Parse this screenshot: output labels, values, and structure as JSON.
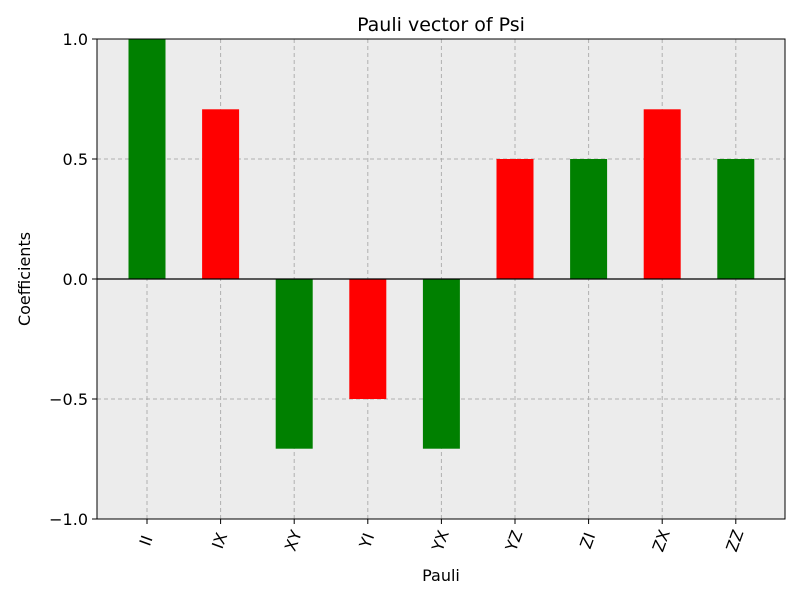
{
  "chart_data": {
    "type": "bar",
    "title": "Pauli vector of Psi",
    "xlabel": "Pauli",
    "ylabel": "Coefficients",
    "ylim": [
      -1.0,
      1.0
    ],
    "yticks": [
      -1.0,
      -0.5,
      0.0,
      0.5,
      1.0
    ],
    "ytick_labels": [
      "−1.0",
      "−0.5",
      "0.0",
      "0.5",
      "1.0"
    ],
    "categories": [
      "II",
      "IX",
      "XY",
      "YI",
      "YX",
      "YZ",
      "ZI",
      "ZX",
      "ZZ"
    ],
    "values": [
      1.0,
      0.7071,
      -0.7071,
      -0.5,
      -0.7071,
      0.5,
      0.5,
      0.7071,
      0.5
    ],
    "bar_colors": [
      "#008000",
      "#ff0000",
      "#008000",
      "#ff0000",
      "#008000",
      "#ff0000",
      "#008000",
      "#ff0000",
      "#008000"
    ],
    "grid": true,
    "background_color": "#ececec",
    "tick_label_rotation": "70"
  }
}
